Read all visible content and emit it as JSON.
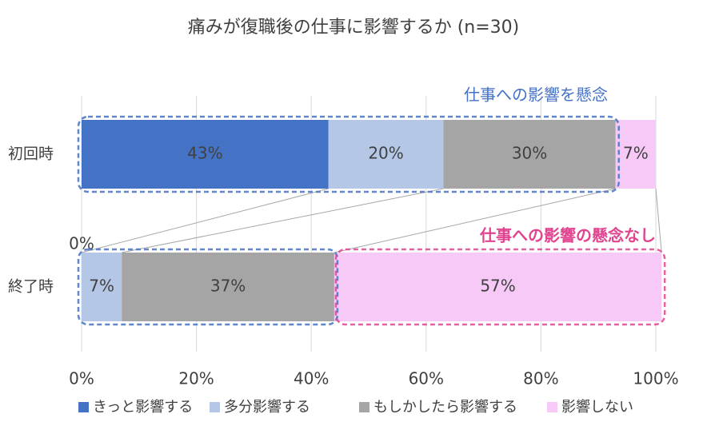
{
  "chart_data": {
    "type": "bar",
    "orientation": "horizontal",
    "stacked": true,
    "title": "痛みが復職後の仕事に影響するか (n=30)",
    "categories": [
      "初回時",
      "終了時"
    ],
    "series": [
      {
        "name": "きっと影響する",
        "color": "#4472c4",
        "values": [
          43,
          0
        ],
        "value_labels": [
          "43%",
          "0%"
        ]
      },
      {
        "name": "多分影響する",
        "color": "#b4c7e7",
        "values": [
          20,
          7
        ],
        "value_labels": [
          "20%",
          "7%"
        ]
      },
      {
        "name": "もしかしたら影響する",
        "color": "#a5a5a5",
        "values": [
          30,
          37
        ],
        "value_labels": [
          "30%",
          "37%"
        ]
      },
      {
        "name": "影響しない",
        "color": "#f6c9f6",
        "values": [
          7,
          57
        ],
        "value_labels": [
          "7%",
          "57%"
        ]
      }
    ],
    "xlim": [
      0,
      100
    ],
    "xticks": [
      {
        "value": 0,
        "label": "0%"
      },
      {
        "value": 20,
        "label": "20%"
      },
      {
        "value": 40,
        "label": "40%"
      },
      {
        "value": 60,
        "label": "60%"
      },
      {
        "value": 80,
        "label": "80%"
      },
      {
        "value": 100,
        "label": "100%"
      }
    ],
    "grid": true,
    "annotations": [
      {
        "text": "仕事への影響を懸念",
        "color": "#4472c4"
      },
      {
        "text": "仕事への影響の懸念なし",
        "color": "#e0448f"
      }
    ]
  }
}
